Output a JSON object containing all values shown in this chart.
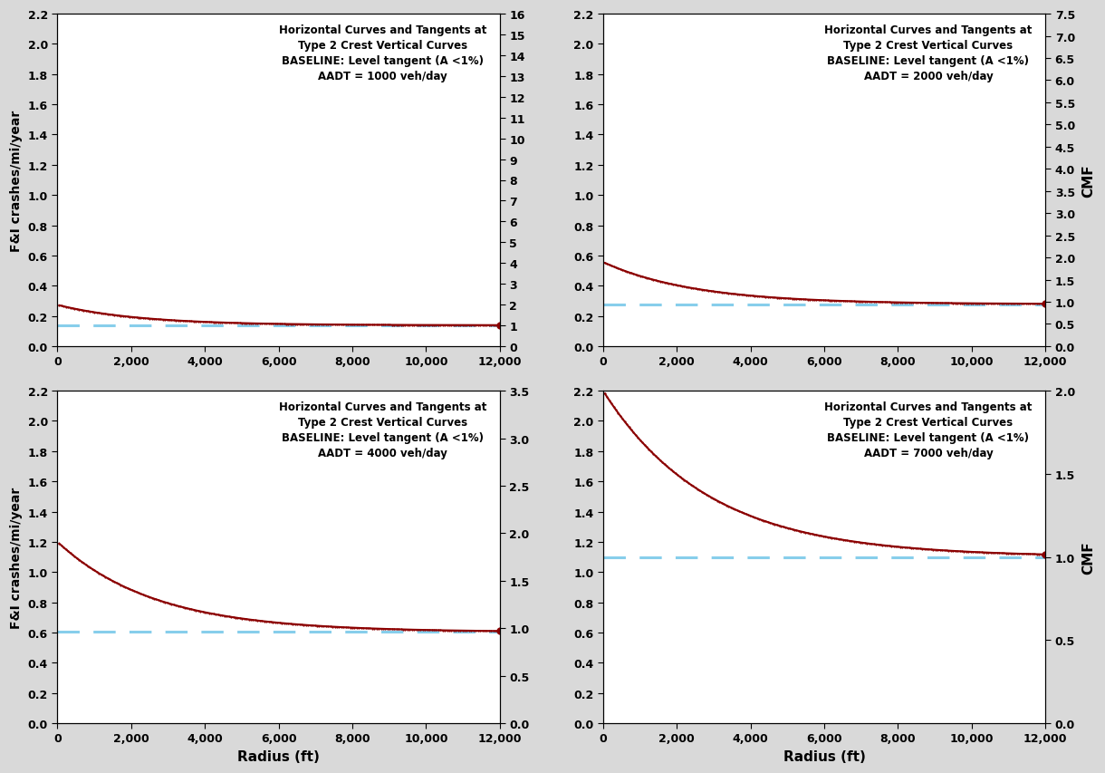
{
  "subplots": [
    {
      "aadt": 1000,
      "title_line1": "Horizontal Curves and Tangents at",
      "title_line2": "Type 2 Crest Vertical Curves",
      "title_line3": "BASELINE: Level tangent (A <1%)",
      "title_line4": "AADT = 1000 veh/day",
      "ylim_fi": [
        0.0,
        2.2
      ],
      "ylim_cmf": [
        0,
        16
      ],
      "cmf_ticks": [
        0,
        1,
        2,
        3,
        4,
        5,
        6,
        7,
        8,
        9,
        10,
        11,
        12,
        13,
        14,
        15,
        16
      ],
      "baseline_fi": 0.138,
      "decay_amplitude": 0.135,
      "decay_k": 0.00045
    },
    {
      "aadt": 2000,
      "title_line1": "Horizontal Curves and Tangents at",
      "title_line2": "Type 2 Crest Vertical Curves",
      "title_line3": "BASELINE: Level tangent (A <1%)",
      "title_line4": "AADT = 2000 veh/day",
      "ylim_fi": [
        0.0,
        2.2
      ],
      "ylim_cmf": [
        0,
        7.5
      ],
      "cmf_ticks": [
        0.0,
        0.5,
        1.0,
        1.5,
        2.0,
        2.5,
        3.0,
        3.5,
        4.0,
        4.5,
        5.0,
        5.5,
        6.0,
        6.5,
        7.0,
        7.5
      ],
      "baseline_fi": 0.278,
      "decay_amplitude": 0.278,
      "decay_k": 0.0004
    },
    {
      "aadt": 4000,
      "title_line1": "Horizontal Curves and Tangents at",
      "title_line2": "Type 2 Crest Vertical Curves",
      "title_line3": "BASELINE: Level tangent (A <1%)",
      "title_line4": "AADT = 4000 veh/day",
      "ylim_fi": [
        0.0,
        2.2
      ],
      "ylim_cmf": [
        0,
        3.5
      ],
      "cmf_ticks": [
        0.0,
        0.5,
        1.0,
        1.5,
        2.0,
        2.5,
        3.0,
        3.5
      ],
      "baseline_fi": 0.603,
      "decay_amplitude": 0.597,
      "decay_k": 0.00038
    },
    {
      "aadt": 7000,
      "title_line1": "Horizontal Curves and Tangents at",
      "title_line2": "Type 2 Crest Vertical Curves",
      "title_line3": "BASELINE: Level tangent (A <1%)",
      "title_line4": "AADT = 7000 veh/day",
      "ylim_fi": [
        0.0,
        2.2
      ],
      "ylim_cmf": [
        0,
        2.0
      ],
      "cmf_ticks": [
        0.0,
        0.5,
        1.0,
        1.5,
        2.0
      ],
      "baseline_fi": 1.1,
      "decay_amplitude": 1.1,
      "decay_k": 0.00035
    }
  ],
  "xlim": [
    0,
    12000
  ],
  "xticks": [
    0,
    2000,
    4000,
    6000,
    8000,
    10000,
    12000
  ],
  "fi_yticks": [
    0.0,
    0.2,
    0.4,
    0.6,
    0.8,
    1.0,
    1.2,
    1.4,
    1.6,
    1.8,
    2.0,
    2.2
  ],
  "curve_color": "#8B0000",
  "baseline_color": "#87CEEB",
  "xlabel": "Radius (ft)",
  "ylabel": "F&I crashes/mi/year",
  "right_ylabel": "CMF",
  "fig_facecolor": "#d9d9d9",
  "ax_facecolor": "#ffffff",
  "tick_fontsize": 9,
  "label_fontsize": 10,
  "title_fontsize": 8.5
}
